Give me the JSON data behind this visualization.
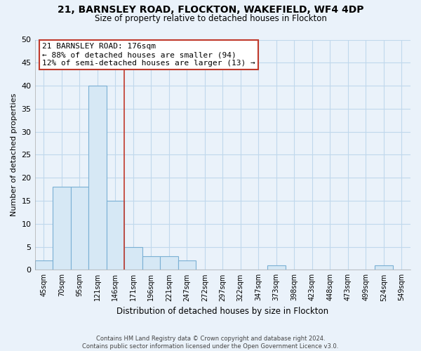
{
  "title": "21, BARNSLEY ROAD, FLOCKTON, WAKEFIELD, WF4 4DP",
  "subtitle": "Size of property relative to detached houses in Flockton",
  "xlabel": "Distribution of detached houses by size in Flockton",
  "ylabel": "Number of detached properties",
  "bin_labels": [
    "45sqm",
    "70sqm",
    "95sqm",
    "121sqm",
    "146sqm",
    "171sqm",
    "196sqm",
    "221sqm",
    "247sqm",
    "272sqm",
    "297sqm",
    "322sqm",
    "347sqm",
    "373sqm",
    "398sqm",
    "423sqm",
    "448sqm",
    "473sqm",
    "499sqm",
    "524sqm",
    "549sqm"
  ],
  "bar_heights": [
    2,
    18,
    18,
    40,
    15,
    5,
    3,
    3,
    2,
    0,
    0,
    0,
    0,
    1,
    0,
    0,
    0,
    0,
    0,
    1,
    0
  ],
  "bar_color": "#d6e8f5",
  "bar_edge_color": "#7ab0d4",
  "vline_x": 4.5,
  "vline_color": "#c0392b",
  "annotation_line1": "21 BARNSLEY ROAD: 176sqm",
  "annotation_line2": "← 88% of detached houses are smaller (94)",
  "annotation_line3": "12% of semi-detached houses are larger (13) →",
  "annotation_box_color": "white",
  "annotation_box_edge_color": "#c0392b",
  "ylim": [
    0,
    50
  ],
  "yticks": [
    0,
    5,
    10,
    15,
    20,
    25,
    30,
    35,
    40,
    45,
    50
  ],
  "footer_text": "Contains HM Land Registry data © Crown copyright and database right 2024.\nContains public sector information licensed under the Open Government Licence v3.0.",
  "bg_color": "#eaf2fa",
  "plot_bg_color": "#eaf2fa",
  "grid_color": "#c0d8ec"
}
